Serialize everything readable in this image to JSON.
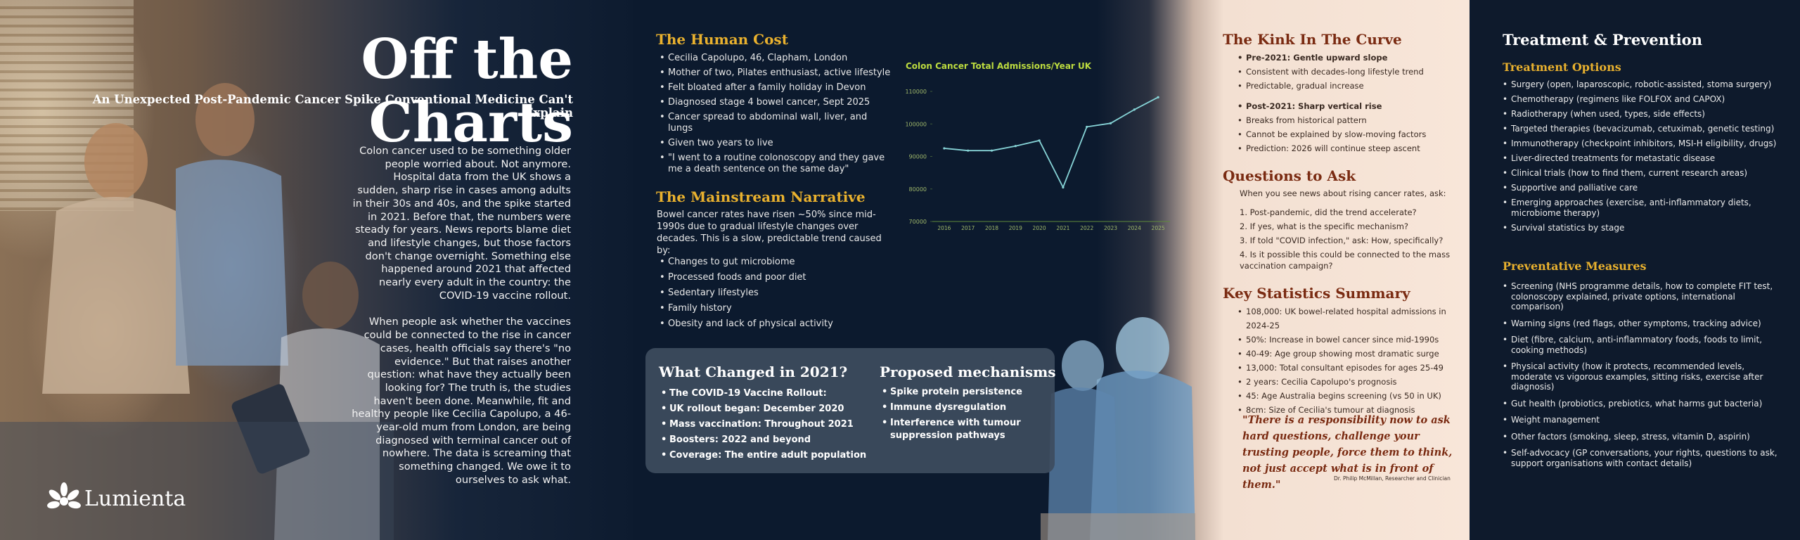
{
  "title": "Off the Charts",
  "subtitle": "An Unexpected Post-Pandemic Cancer Spike Conventional Medicine Can't Explain",
  "intro": [
    "Colon cancer used to be something older people worried about. Not anymore. Hospital data from the UK shows a sudden, sharp rise in cases among adults in their 30s and 40s, and the spike started in 2021. Before that, the numbers were steady for years. News reports blame diet and lifestyle changes, but those factors don't change overnight. Something else happened around 2021 that affected nearly every adult in the country: the COVID-19 vaccine rollout.",
    "When people ask whether the vaccines could be connected to the rise in cancer cases, health officials say there's \"no evidence.\" But that raises another question: what have they actually been looking for? The truth is, the studies haven't been done. Meanwhile, fit and healthy people like Cecilia Capolupo, a 46-year-old mum from London, are being diagnosed with terminal cancer out of nowhere. The data is screaming that something changed. We owe it to ourselves to ask what."
  ],
  "logo": "Lumienta",
  "human_cost": {
    "heading": "The Human Cost",
    "items": [
      "Cecilia Capolupo, 46, Clapham, London",
      "Mother of two, Pilates enthusiast, active lifestyle",
      "Felt bloated after a family holiday in Devon",
      "Diagnosed stage 4 bowel cancer, Sept 2025",
      "Cancer spread to abdominal wall, liver, and lungs",
      "Given two years to live",
      "\"I went to a routine colonoscopy and they gave me a death sentence on the same day\""
    ]
  },
  "mainstream": {
    "heading": "The Mainstream Narrative",
    "text": "Bowel cancer rates have risen ~50% since mid-1990s due to gradual lifestyle changes over decades. This is a slow, predictable trend caused by:",
    "items": [
      "Changes to gut microbiome",
      "Processed foods and poor diet",
      "Sedentary lifestyles",
      "Family history",
      "Obesity and lack of physical activity"
    ]
  },
  "changed": {
    "heading": "What Changed in 2021?",
    "items": [
      "The COVID-19 Vaccine Rollout:",
      "UK rollout began: December 2020",
      "Mass vaccination: Throughout 2021",
      "Boosters: 2022 and beyond",
      "Coverage: The entire adult population"
    ]
  },
  "mechanisms": {
    "heading": "Proposed mechanisms",
    "items": [
      "Spike protein persistence",
      "Immune dysregulation",
      "Interference with tumour suppression pathways"
    ]
  },
  "chart_data": {
    "type": "line",
    "title": "Colon Cancer Total Admissions/Year UK",
    "categories": [
      "2016",
      "2017",
      "2018",
      "2019",
      "2020",
      "2021",
      "2022",
      "2023",
      "2024",
      "2025"
    ],
    "values": [
      92500,
      91800,
      91800,
      93200,
      94900,
      80500,
      99100,
      100200,
      104400,
      108200
    ],
    "color": "#86d3d6",
    "ylim": [
      70000,
      110000
    ],
    "yticks": [
      70000,
      80000,
      90000,
      100000,
      110000
    ],
    "grid": false
  },
  "kink": {
    "heading": "The Kink In The Curve",
    "groups": [
      {
        "title": "Pre-2021: Gentle upward slope",
        "items": [
          "Consistent with decades-long lifestyle trend",
          "Predictable, gradual increase"
        ]
      },
      {
        "title": "Post-2021: Sharp vertical rise",
        "items": [
          "Breaks from historical pattern",
          "Cannot be explained by slow-moving factors",
          "Prediction: 2026 will continue steep ascent"
        ]
      }
    ]
  },
  "questions": {
    "heading": "Questions to Ask",
    "intro": "When you see news about rising cancer rates, ask:",
    "items": [
      "1. Post-pandemic, did the trend accelerate?",
      "2. If yes, what is the specific mechanism?",
      "3. If told \"COVID infection,\" ask: How, specifically?",
      "4. Is it possible this could be connected to the mass vaccination campaign?"
    ]
  },
  "stats": {
    "heading": "Key Statistics Summary",
    "items": [
      "108,000: UK bowel-related hospital admissions in 2024-25",
      "50%: Increase in bowel cancer since mid-1990s",
      "40-49: Age group showing most dramatic surge",
      "13,000: Total consultant episodes for ages 25-49",
      "2 years: Cecilia Capolupo's prognosis",
      "45: Age Australia begins screening (vs 50 in UK)",
      "8cm: Size of Cecilia's tumour at diagnosis"
    ]
  },
  "quote": {
    "text": "\"There is a responsibility now to ask hard questions, challenge your trusting people, force them to think, not just accept what is in front of them.\"",
    "attribution": "Dr. Philip McMillan, Researcher and Clinician"
  },
  "treatment": {
    "heading": "Treatment & Prevention",
    "options": {
      "heading": "Treatment Options",
      "items": [
        "Surgery (open, laparoscopic, robotic-assisted, stoma surgery)",
        "Chemotherapy (regimens like FOLFOX and CAPOX)",
        "Radiotherapy (when used, types, side effects)",
        "Targeted therapies (bevacizumab, cetuximab, genetic testing)",
        "Immunotherapy (checkpoint inhibitors, MSI-H eligibility, drugs)",
        "Liver-directed treatments for metastatic disease",
        "Clinical trials (how to find them, current research areas)",
        "Supportive and palliative care",
        "Emerging approaches (exercise, anti-inflammatory diets, microbiome therapy)",
        "Survival statistics by stage"
      ]
    },
    "prevention": {
      "heading": "Preventative Measures",
      "items": [
        "Screening (NHS programme details, how to complete FIT test, colonoscopy explained, private options, international comparison)",
        "Warning signs (red flags, other symptoms, tracking advice)",
        "Diet (fibre, calcium, anti-inflammatory foods, foods to limit, cooking methods)",
        "Physical activity (how it protects, recommended levels, moderate vs vigorous examples, sitting risks, exercise after diagnosis)",
        "Gut health (probiotics, prebiotics, what harms gut bacteria)",
        "Weight management",
        "Other factors (smoking, sleep, stress, vitamin D, aspirin)",
        "Self-advocacy (GP conversations, your rights, questions to ask, support organisations with contact details)"
      ]
    }
  }
}
